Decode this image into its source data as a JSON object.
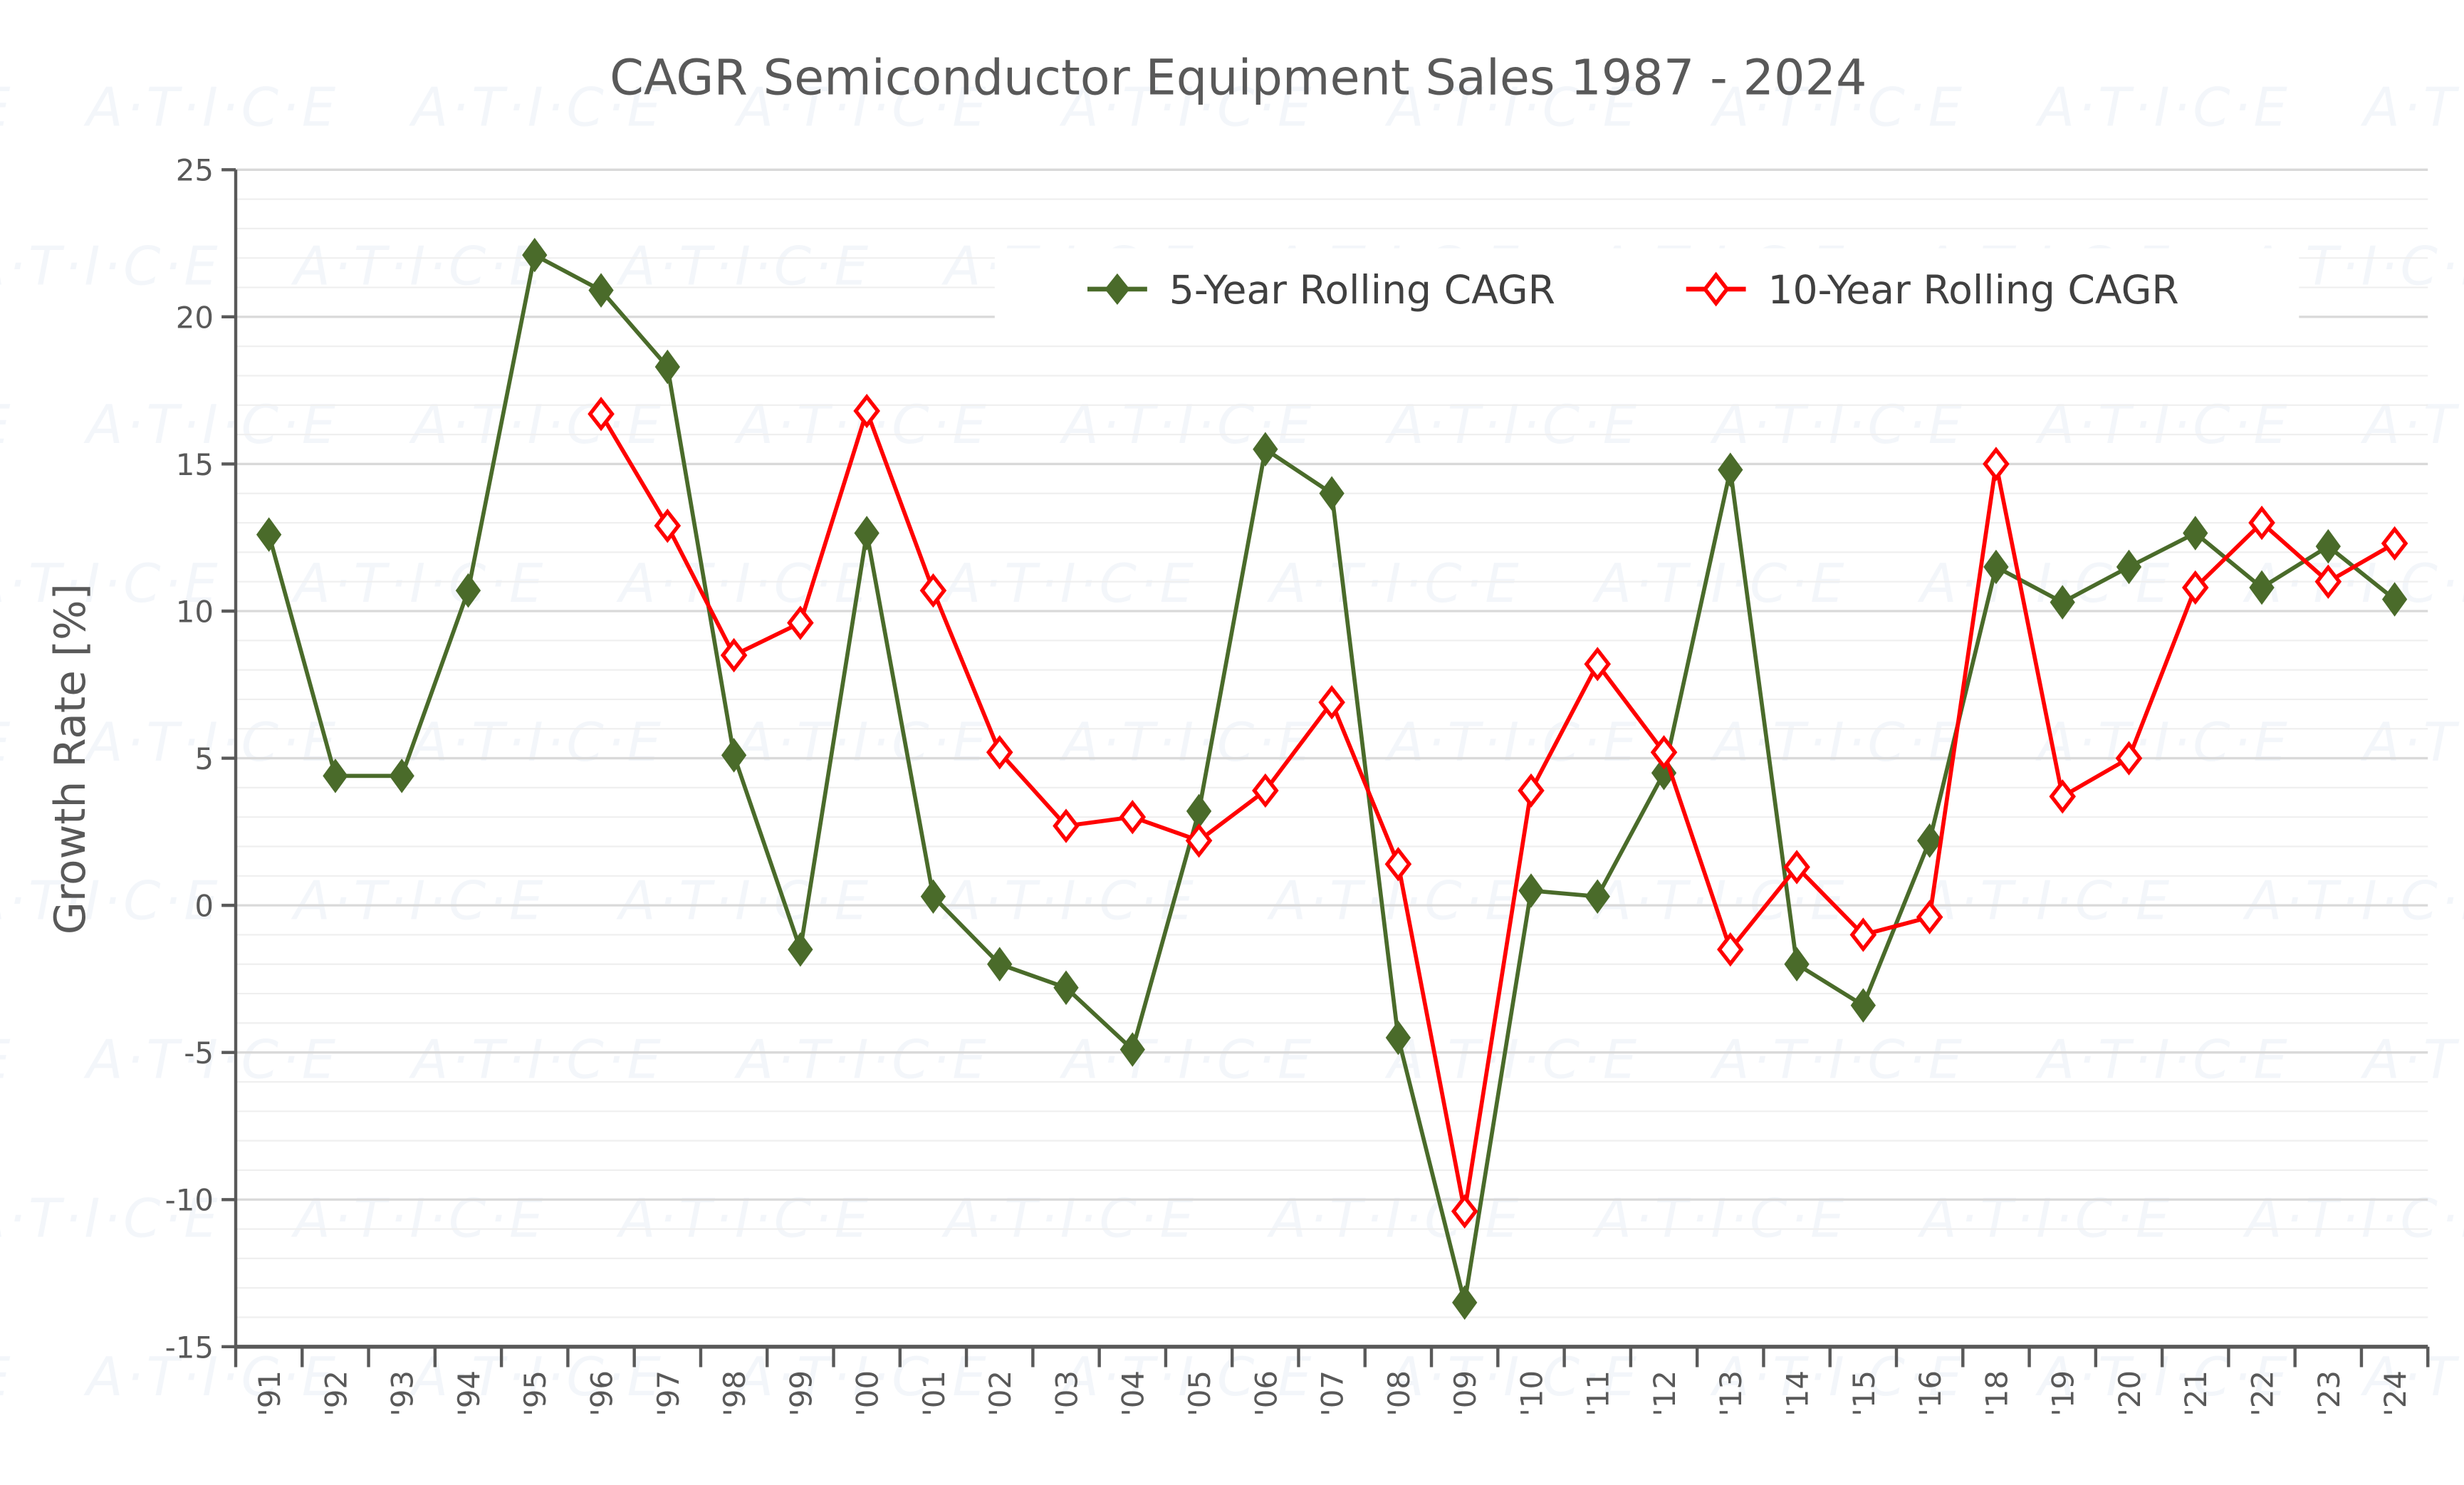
{
  "watermark": "A·T·I·C·E",
  "chart_data": {
    "type": "line",
    "title": "CAGR Semiconductor Equipment Sales 1987 - 2024",
    "xlabel": "",
    "ylabel": "Growth Rate [%]",
    "ylim": [
      -15,
      25
    ],
    "yticks": [
      25,
      20,
      15,
      10,
      5,
      0,
      -5,
      -10,
      -15
    ],
    "grid": true,
    "legend_position": "top-right",
    "categories": [
      "'91",
      "'92",
      "'93",
      "'94",
      "'95",
      "'96",
      "'97",
      "'98",
      "'99",
      "'00",
      "'01",
      "'02",
      "'03",
      "'04",
      "'05",
      "'06",
      "'07",
      "'08",
      "'09",
      "'10",
      "'11",
      "'12",
      "'13",
      "'14",
      "'15",
      "'16",
      "'18",
      "'19",
      "'20",
      "'21",
      "'22",
      "'23",
      "'24"
    ],
    "series": [
      {
        "name": "5-Year Rolling CAGR",
        "color": "#4a6b2a",
        "marker": "filled-diamond",
        "values": [
          12.6,
          4.4,
          4.4,
          10.7,
          22.1,
          20.9,
          18.3,
          5.1,
          -1.5,
          12.65,
          0.3,
          -2.0,
          -2.8,
          -4.9,
          3.2,
          15.5,
          14.0,
          -4.5,
          -13.5,
          0.5,
          0.3,
          4.5,
          14.8,
          -2.0,
          -3.4,
          2.2,
          11.5,
          10.3,
          11.5,
          12.65,
          10.8,
          12.2,
          10.4
        ]
      },
      {
        "name": "10-Year Rolling CAGR",
        "color": "#ff0000",
        "marker": "hollow-diamond",
        "values": [
          null,
          null,
          null,
          null,
          null,
          16.7,
          12.9,
          8.5,
          9.6,
          16.8,
          10.7,
          5.2,
          2.7,
          3.0,
          2.2,
          3.9,
          6.9,
          1.4,
          -10.4,
          3.9,
          8.2,
          5.2,
          -1.5,
          1.3,
          -1.0,
          -0.4,
          15.0,
          3.7,
          5.0,
          10.8,
          13.0,
          11.0,
          12.3
        ]
      }
    ]
  }
}
